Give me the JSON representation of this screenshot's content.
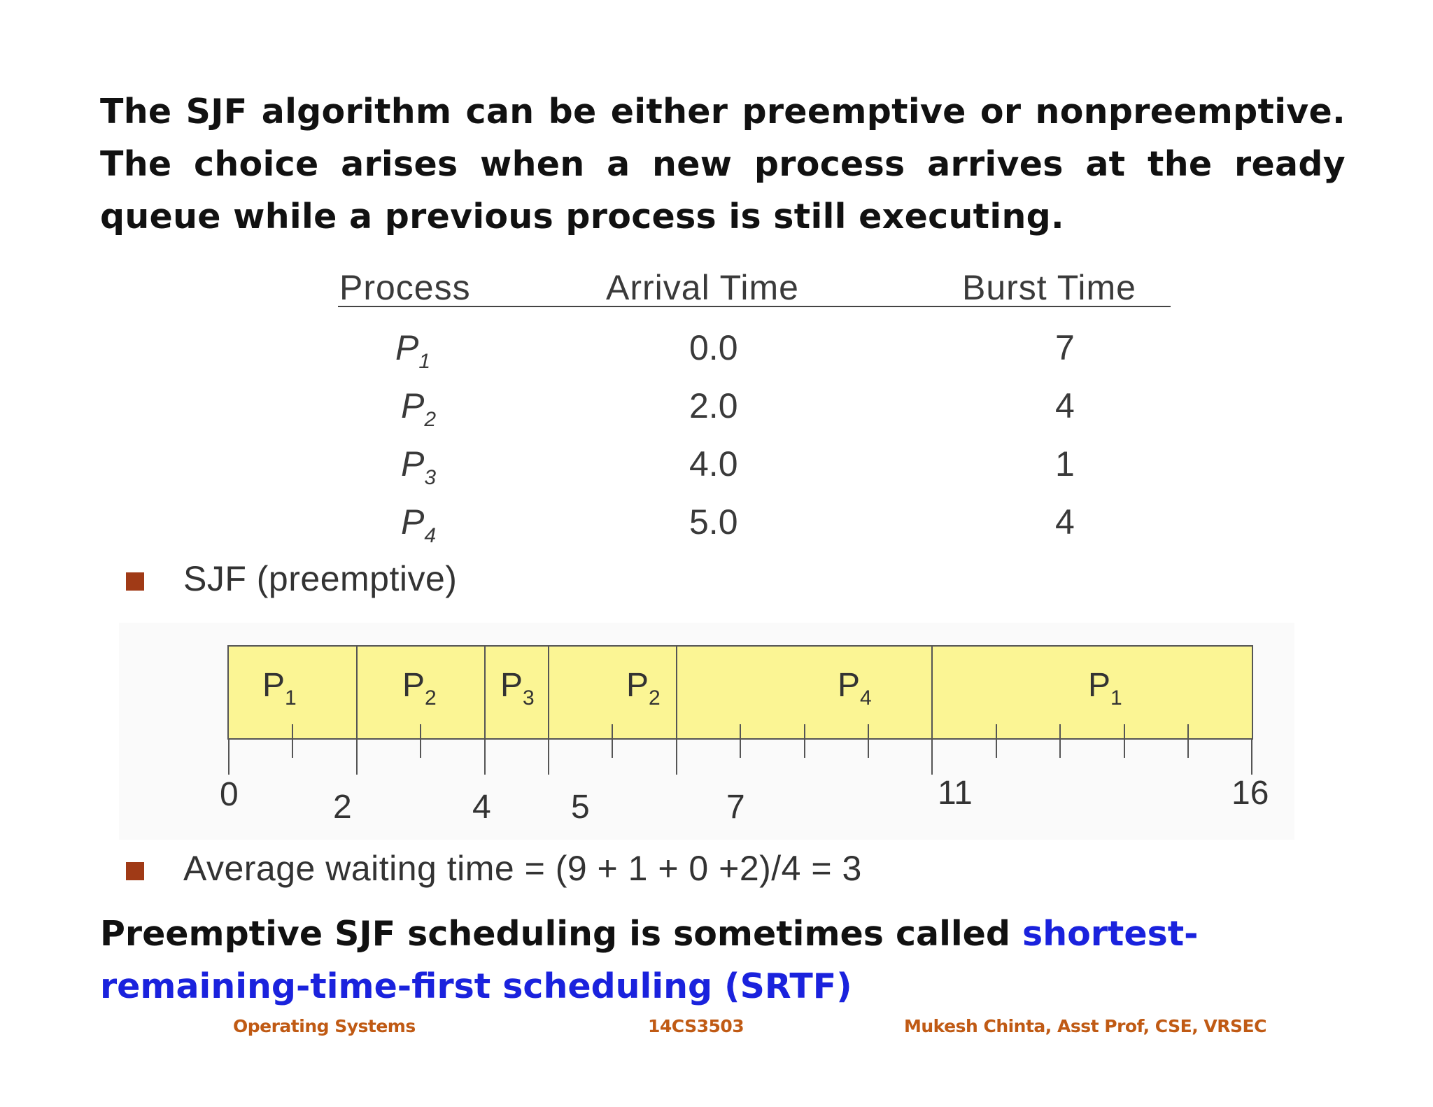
{
  "intro": "The SJF algorithm can be either preemptive or nonpreemptive. The choice arises when a new process arrives at the ready queue while a previous process is still executing.",
  "table": {
    "headers": {
      "process": "Process",
      "arrival": "Arrival Time",
      "burst": "Burst Time"
    },
    "rows": [
      {
        "p": "P",
        "sub": "1",
        "arrival": "0.0",
        "burst": "7"
      },
      {
        "p": "P",
        "sub": "2",
        "arrival": "2.0",
        "burst": "4"
      },
      {
        "p": "P",
        "sub": "3",
        "arrival": "4.0",
        "burst": "1"
      },
      {
        "p": "P",
        "sub": "4",
        "arrival": "5.0",
        "burst": "4"
      }
    ]
  },
  "bullets": {
    "sjf": "SJF (preemptive)",
    "avg": "Average waiting time = (9 + 1 + 0 +2)/4 = 3"
  },
  "gantt": {
    "segments": [
      {
        "p": "P",
        "sub": "1",
        "start": 0,
        "end": 2
      },
      {
        "p": "P",
        "sub": "2",
        "start": 2,
        "end": 4
      },
      {
        "p": "P",
        "sub": "3",
        "start": 4,
        "end": 5
      },
      {
        "p": "P",
        "sub": "2",
        "start": 5,
        "end": 7
      },
      {
        "p": "P",
        "sub": "4",
        "start": 7,
        "end": 11
      },
      {
        "p": "P",
        "sub": "1",
        "start": 11,
        "end": 16
      }
    ],
    "ticks": [
      "0",
      "2",
      "4",
      "5",
      "7",
      "11",
      "16"
    ]
  },
  "closing": {
    "lead": "Preemptive SJF scheduling is sometimes called ",
    "term": "shortest-remaining-time-first scheduling (SRTF)"
  },
  "footer": {
    "course": "Operating Systems",
    "code": "14CS3503",
    "author": "Mukesh Chinta, Asst Prof, CSE, VRSEC"
  }
}
